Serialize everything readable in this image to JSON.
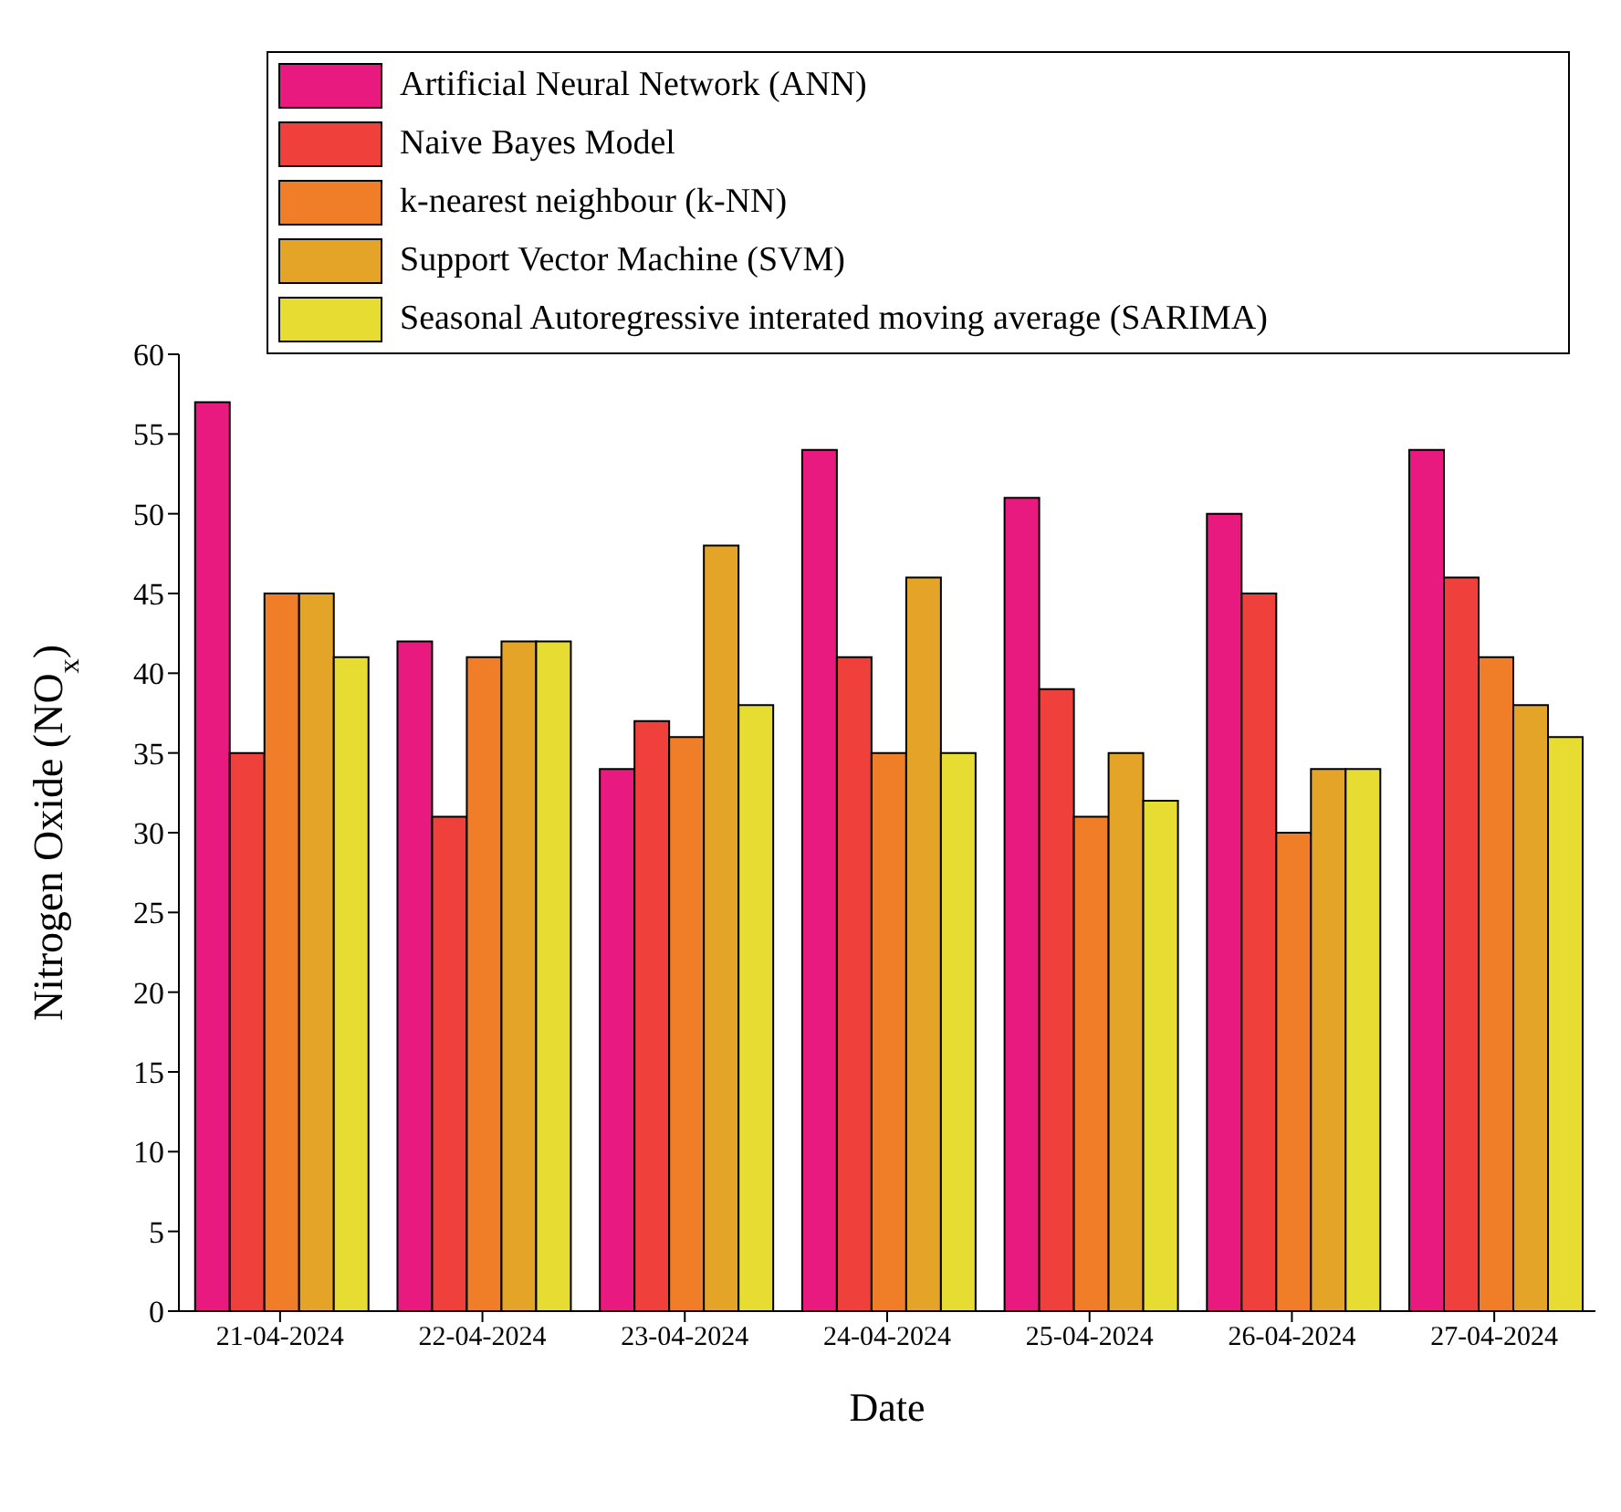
{
  "chart_data": {
    "type": "bar",
    "xlabel": "Date",
    "ylabel": "Nitrogen Oxide (NO$_{x}$)",
    "categories": [
      "21-04-2024",
      "22-04-2024",
      "23-04-2024",
      "24-04-2024",
      "25-04-2024",
      "26-04-2024",
      "27-04-2024"
    ],
    "series": [
      {
        "name": "Artificial Neural Network (ANN)",
        "color": "#e8197f",
        "values": [
          57,
          42,
          34,
          54,
          51,
          50,
          54
        ]
      },
      {
        "name": "Naive Bayes Model",
        "color": "#f0403c",
        "values": [
          35,
          31,
          37,
          41,
          39,
          45,
          46
        ]
      },
      {
        "name": "k-nearest neighbour (k-NN)",
        "color": "#f07e28",
        "values": [
          45,
          41,
          36,
          35,
          31,
          30,
          41
        ]
      },
      {
        "name": "Support Vector Machine (SVM)",
        "color": "#e3a428",
        "values": [
          45,
          42,
          48,
          46,
          35,
          34,
          38
        ]
      },
      {
        "name": "Seasonal Autoregressive interated moving average (SARIMA)",
        "color": "#e6dc32",
        "values": [
          41,
          42,
          38,
          35,
          32,
          34,
          36
        ]
      }
    ],
    "ylim": [
      0,
      60
    ],
    "yticks": [
      0,
      5,
      10,
      15,
      20,
      25,
      30,
      35,
      40,
      45,
      50,
      55,
      60
    ],
    "grid": false,
    "legend": "top"
  }
}
